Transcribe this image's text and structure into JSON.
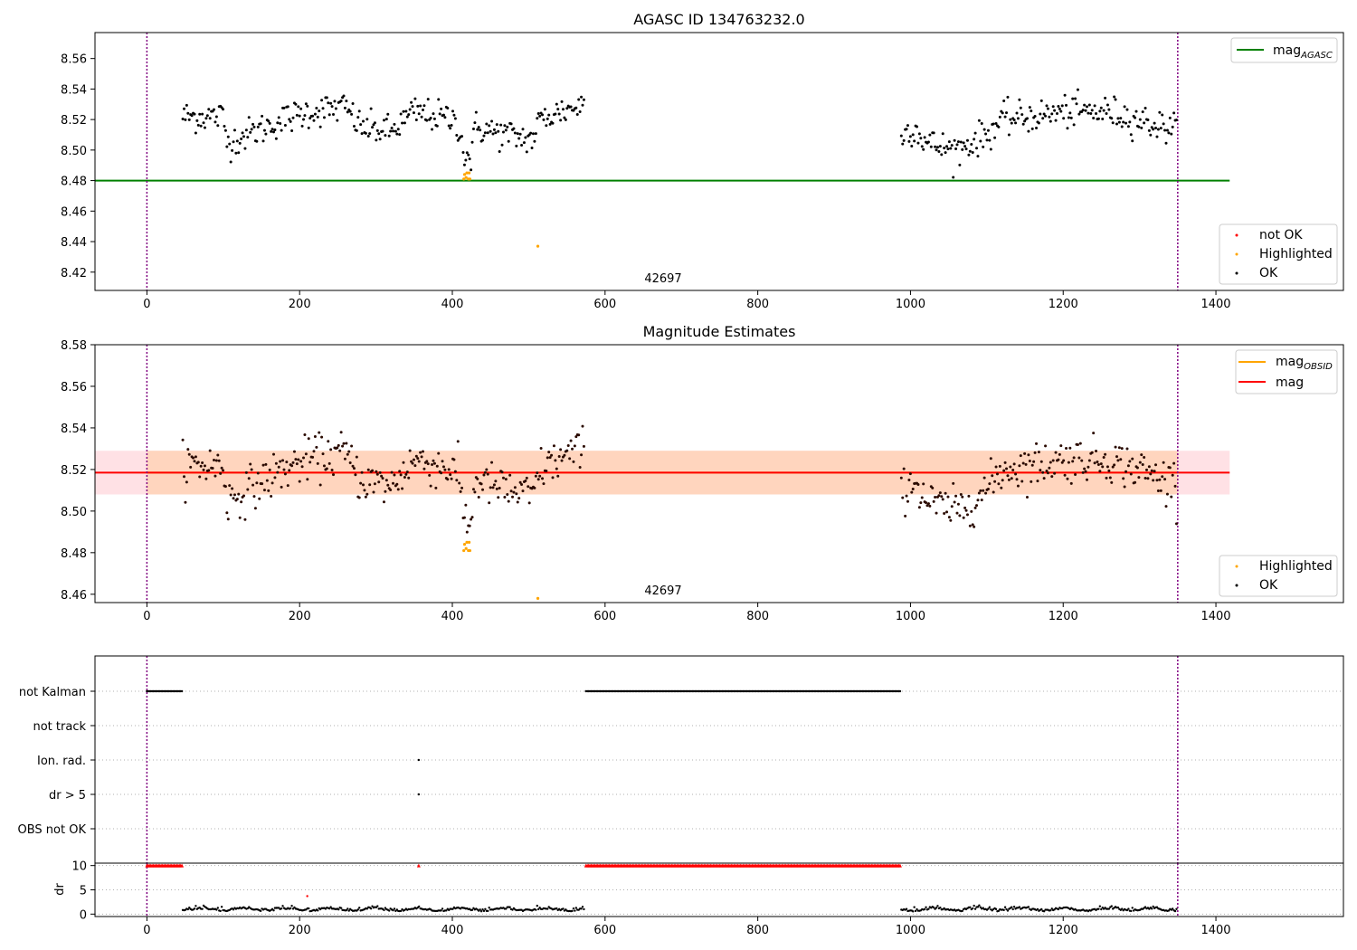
{
  "chart_data": [
    {
      "type": "scatter",
      "title": "AGASC ID 134763232.0",
      "xlabel": "",
      "ylabel": "",
      "xlim": [
        -68,
        1567
      ],
      "ylim": [
        8.408,
        8.577
      ],
      "xticks": [
        0,
        200,
        400,
        600,
        800,
        1000,
        1200,
        1400
      ],
      "yticks": [
        8.42,
        8.44,
        8.46,
        8.48,
        8.5,
        8.52,
        8.54,
        8.56
      ],
      "grid": false,
      "vlines": [
        0,
        1350
      ],
      "hlines": [
        {
          "name": "mag_AGASC",
          "y": 8.48,
          "x0": -68,
          "x1": 1418,
          "color": "#008000"
        }
      ],
      "annotation": "42697",
      "legend_lines": [
        {
          "label": "mag",
          "sub": "AGASC",
          "color": "#008000"
        }
      ],
      "legend_points": [
        {
          "label": "not OK",
          "color": "#ff0000"
        },
        {
          "label": "Highlighted",
          "color": "#ffa500"
        },
        {
          "label": "OK",
          "color": "#000000"
        }
      ],
      "legend_lines_position": "top-right",
      "legend_points_position": "bottom-right",
      "series": [
        {
          "segments": [
            {
              "x0": 47,
              "x1": 573,
              "step": 1.7,
              "profile": [
                [
                  47,
                  8.522
                ],
                [
                  100,
                  8.522
                ],
                [
                  105,
                  8.505
                ],
                [
                  140,
                  8.512
                ],
                [
                  180,
                  8.52
                ],
                [
                  210,
                  8.525
                ],
                [
                  260,
                  8.528
                ],
                [
                  280,
                  8.515
                ],
                [
                  320,
                  8.512
                ],
                [
                  350,
                  8.525
                ],
                [
                  400,
                  8.52
                ],
                [
                  410,
                  8.515
                ],
                [
                  415,
                  8.497
                ],
                [
                  425,
                  8.495
                ],
                [
                  430,
                  8.515
                ],
                [
                  470,
                  8.51
                ],
                [
                  505,
                  8.507
                ],
                [
                  515,
                  8.52
                ],
                [
                  540,
                  8.525
                ],
                [
                  573,
                  8.53
                ]
              ],
              "noise": 0.007
            },
            {
              "x0": 988,
              "x1": 1350,
              "step": 1.7,
              "profile": [
                [
                  988,
                  8.51
                ],
                [
                  1005,
                  8.515
                ],
                [
                  1020,
                  8.505
                ],
                [
                  1040,
                  8.502
                ],
                [
                  1060,
                  8.5
                ],
                [
                  1080,
                  8.505
                ],
                [
                  1100,
                  8.51
                ],
                [
                  1120,
                  8.52
                ],
                [
                  1160,
                  8.522
                ],
                [
                  1200,
                  8.525
                ],
                [
                  1260,
                  8.525
                ],
                [
                  1300,
                  8.52
                ],
                [
                  1330,
                  8.515
                ],
                [
                  1350,
                  8.515
                ]
              ],
              "noise": 0.007
            }
          ]
        },
        {
          "name": "Highlighted",
          "color": "#ffa500",
          "points": [
            [
              415,
              8.481
            ],
            [
              416,
              8.484
            ],
            [
              418,
              8.482
            ],
            [
              419,
              8.485
            ],
            [
              421,
              8.481
            ],
            [
              422,
              8.485
            ],
            [
              423,
              8.481
            ],
            [
              512,
              8.437
            ]
          ]
        }
      ]
    },
    {
      "type": "scatter",
      "title": "Magnitude Estimates",
      "xlabel": "",
      "ylabel": "",
      "xlim": [
        -68,
        1567
      ],
      "ylim": [
        8.456,
        8.58
      ],
      "xticks": [
        0,
        200,
        400,
        600,
        800,
        1000,
        1200,
        1400
      ],
      "yticks": [
        8.46,
        8.48,
        8.5,
        8.52,
        8.54,
        8.56,
        8.58
      ],
      "grid": false,
      "vlines": [
        0,
        1350
      ],
      "hlines": [
        {
          "name": "mag_OBSID",
          "y": 8.5185,
          "x0": 0,
          "x1": 1350,
          "color": "#ffa500"
        },
        {
          "name": "mag",
          "y": 8.5185,
          "x0": -68,
          "x1": 1418,
          "color": "#ff0000"
        }
      ],
      "bands": [
        {
          "name": "mag band",
          "y0": 8.508,
          "y1": 8.529,
          "x0": -68,
          "x1": 1418,
          "color": "#ffd7dc"
        },
        {
          "name": "mag_OBSID band",
          "y0": 8.508,
          "y1": 8.529,
          "x0": 0,
          "x1": 1350,
          "color": "#ffd0b0"
        }
      ],
      "annotation": "42697",
      "legend_lines": [
        {
          "label": "mag",
          "sub": "OBSID",
          "color": "#ffa500"
        },
        {
          "label": "mag",
          "sub": "",
          "color": "#ff0000"
        }
      ],
      "legend_points": [
        {
          "label": "Highlighted",
          "color": "#ffa500"
        },
        {
          "label": "OK",
          "color": "#000000"
        }
      ],
      "legend_lines_position": "top-right",
      "legend_points_position": "bottom-right",
      "series": [
        {
          "segments": [
            {
              "x0": 47,
              "x1": 573,
              "step": 1.7,
              "profile": [
                [
                  47,
                  8.522
                ],
                [
                  100,
                  8.522
                ],
                [
                  105,
                  8.505
                ],
                [
                  140,
                  8.512
                ],
                [
                  180,
                  8.52
                ],
                [
                  210,
                  8.525
                ],
                [
                  260,
                  8.528
                ],
                [
                  280,
                  8.515
                ],
                [
                  320,
                  8.512
                ],
                [
                  350,
                  8.525
                ],
                [
                  400,
                  8.52
                ],
                [
                  410,
                  8.515
                ],
                [
                  415,
                  8.497
                ],
                [
                  425,
                  8.495
                ],
                [
                  430,
                  8.515
                ],
                [
                  470,
                  8.51
                ],
                [
                  505,
                  8.507
                ],
                [
                  515,
                  8.52
                ],
                [
                  540,
                  8.525
                ],
                [
                  573,
                  8.53
                ]
              ],
              "noise": 0.007
            },
            {
              "x0": 988,
              "x1": 1350,
              "step": 1.7,
              "profile": [
                [
                  988,
                  8.51
                ],
                [
                  1005,
                  8.515
                ],
                [
                  1020,
                  8.505
                ],
                [
                  1040,
                  8.502
                ],
                [
                  1060,
                  8.5
                ],
                [
                  1080,
                  8.505
                ],
                [
                  1100,
                  8.51
                ],
                [
                  1120,
                  8.52
                ],
                [
                  1160,
                  8.522
                ],
                [
                  1200,
                  8.525
                ],
                [
                  1260,
                  8.525
                ],
                [
                  1300,
                  8.52
                ],
                [
                  1330,
                  8.515
                ],
                [
                  1350,
                  8.515
                ]
              ],
              "noise": 0.007
            }
          ]
        },
        {
          "name": "Highlighted",
          "color": "#ffa500",
          "points": [
            [
              415,
              8.481
            ],
            [
              416,
              8.484
            ],
            [
              418,
              8.482
            ],
            [
              419,
              8.485
            ],
            [
              421,
              8.481
            ],
            [
              422,
              8.485
            ],
            [
              423,
              8.481
            ],
            [
              512,
              8.458
            ]
          ]
        }
      ]
    },
    {
      "type": "scatter",
      "title": "",
      "xlabel": "",
      "ylabel": "",
      "xlim": [
        -68,
        1567
      ],
      "yticklabels": [
        "not Kalman",
        "not track",
        "Ion. rad.",
        "dr > 5",
        "OBS not OK"
      ],
      "grid": true,
      "vlines": [
        0,
        1350
      ],
      "flags": [
        {
          "label": "not Kalman",
          "ranges": [
            [
              0,
              46
            ],
            [
              575,
              988
            ]
          ],
          "points": []
        },
        {
          "label": "not track",
          "ranges": [],
          "points": []
        },
        {
          "label": "Ion. rad.",
          "ranges": [],
          "points": [
            356
          ]
        },
        {
          "label": "dr > 5",
          "ranges": [],
          "points": [
            356
          ]
        },
        {
          "label": "OBS not OK",
          "ranges": [],
          "points": []
        }
      ]
    },
    {
      "type": "scatter",
      "title": "",
      "xlabel": "",
      "ylabel": "dr",
      "xlim": [
        -68,
        1567
      ],
      "ylim": [
        -0.5,
        10.5
      ],
      "xticks": [
        0,
        200,
        400,
        600,
        800,
        1000,
        1200,
        1400
      ],
      "yticks": [
        0,
        5,
        10
      ],
      "grid": true,
      "vlines": [
        0,
        1350
      ],
      "series": [
        {
          "name": "dr > 5",
          "color": "#ff0000",
          "marker": "triangle",
          "ranges": [
            [
              0,
              46
            ],
            [
              575,
              988
            ]
          ],
          "points": [
            356
          ],
          "y": 10
        },
        {
          "name": "dr outlier",
          "color": "#ff0000",
          "points_xy": [
            [
              210,
              3.7
            ]
          ]
        },
        {
          "name": "dr",
          "color": "#000000",
          "segments": [
            [
              47,
              573
            ],
            [
              988,
              1350
            ]
          ],
          "base": 0.8,
          "noise": 0.5
        }
      ]
    }
  ]
}
